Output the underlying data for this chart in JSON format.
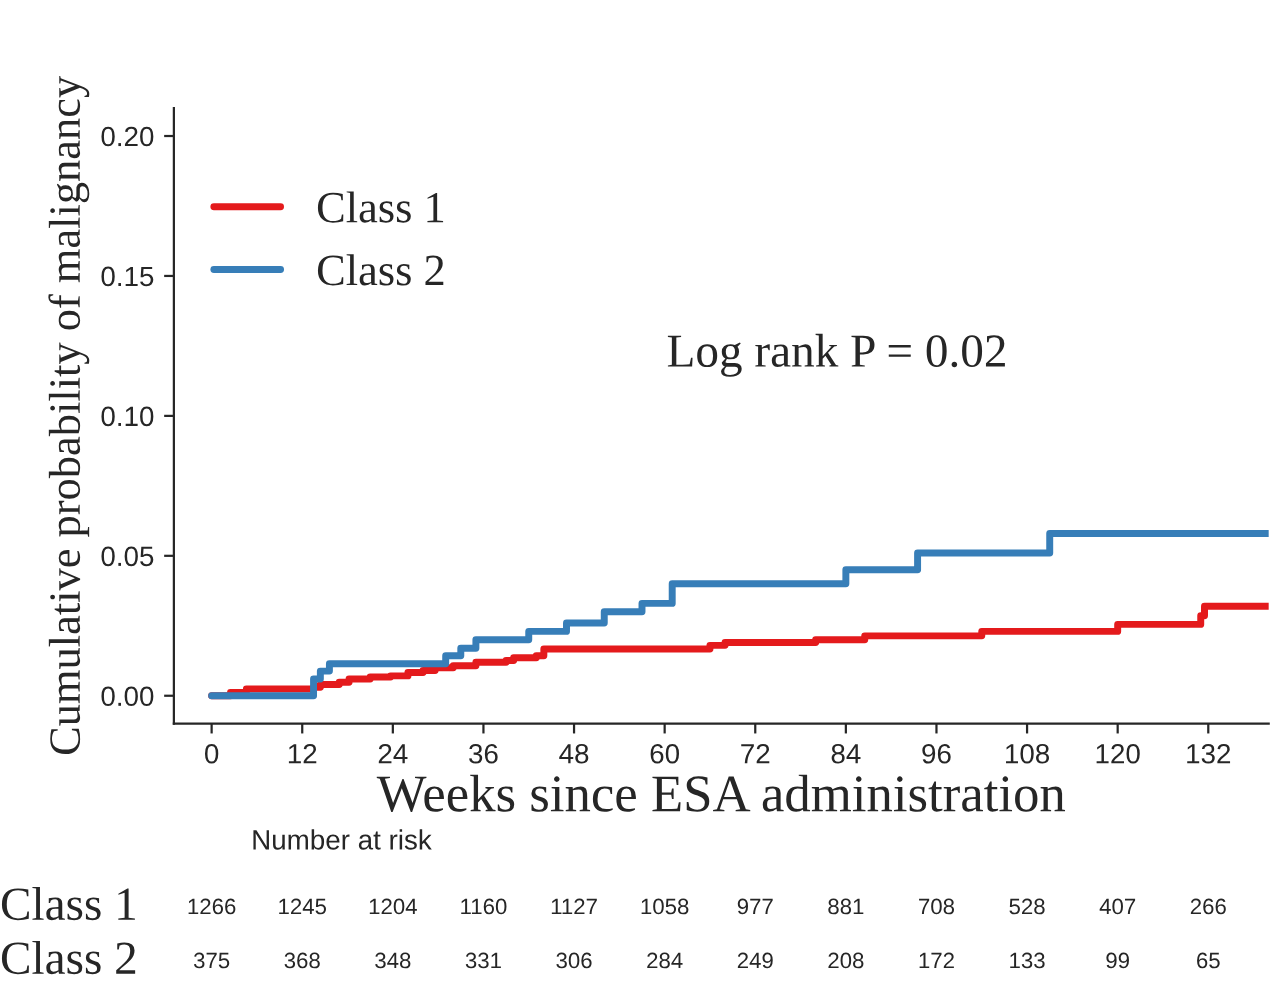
{
  "chart_data": {
    "type": "step",
    "xlabel": "Weeks since ESA administration",
    "ylabel": "Cumulative probability of malignancy",
    "xlim": [
      -5,
      140
    ],
    "ylim": [
      -0.01,
      0.21
    ],
    "xticks": [
      0,
      12,
      24,
      36,
      48,
      60,
      72,
      84,
      96,
      108,
      120,
      132
    ],
    "yticks": [
      {
        "value": 0,
        "label": "0.00"
      },
      {
        "value": 0.05,
        "label": "0.05"
      },
      {
        "value": 0.1,
        "label": "0.10"
      },
      {
        "value": 0.15,
        "label": "0.15"
      },
      {
        "value": 0.2,
        "label": "0.20"
      }
    ],
    "grid": false,
    "legend": "top left",
    "series": [
      {
        "name": "Class 1",
        "color": "#e41a1c",
        "x": [
          0,
          2.5,
          4.6,
          13.5,
          14.4,
          16.9,
          18.2,
          21,
          23.7,
          26,
          28,
          29.6,
          32,
          35,
          39,
          40,
          43,
          44,
          66,
          68,
          80,
          86.5,
          102,
          120,
          131,
          131.5,
          140
        ],
        "values": [
          0,
          0.0012,
          0.0024,
          0.003,
          0.004,
          0.0048,
          0.006,
          0.0067,
          0.0071,
          0.0083,
          0.009,
          0.01,
          0.0107,
          0.012,
          0.0126,
          0.0136,
          0.0143,
          0.0167,
          0.018,
          0.019,
          0.02,
          0.0214,
          0.023,
          0.0255,
          0.0286,
          0.032,
          0.032
        ]
      },
      {
        "name": "Class 2",
        "color": "#377eb8",
        "x": [
          0,
          13.5,
          14.4,
          15.6,
          31,
          33,
          35,
          42,
          47,
          52,
          57,
          61,
          84,
          93.5,
          111,
          140
        ],
        "values": [
          0,
          0.006,
          0.0088,
          0.0114,
          0.0143,
          0.017,
          0.02,
          0.023,
          0.026,
          0.03,
          0.033,
          0.04,
          0.045,
          0.051,
          0.058,
          0.058
        ]
      }
    ],
    "annotations": [
      "Log rank P = 0.02",
      "Number at risk",
      "Class 1",
      "1266",
      "1245",
      "1204",
      "1160",
      "1127",
      "1058",
      "977",
      "881",
      "708",
      "528",
      "407",
      "266",
      "Class 2",
      "375",
      "368",
      "348",
      "331",
      "306",
      "284",
      "249",
      "208",
      "172",
      "133",
      "99",
      "65"
    ]
  }
}
